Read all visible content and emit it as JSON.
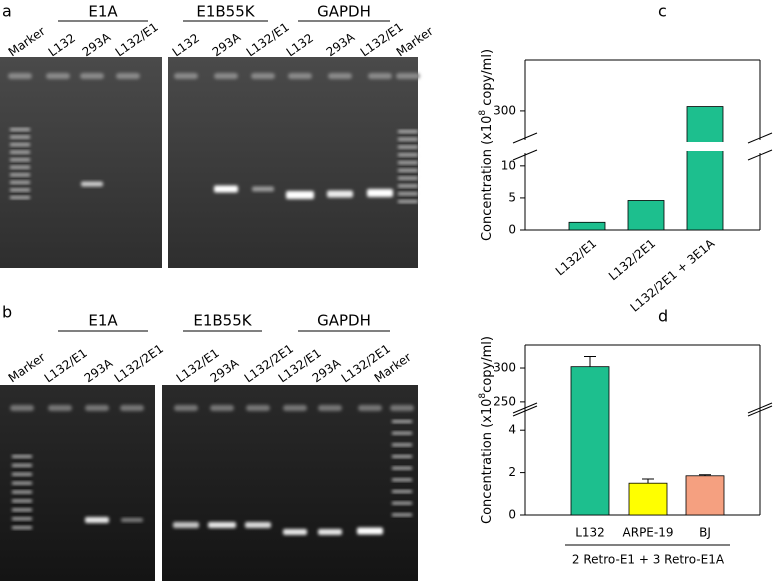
{
  "gel_a": {
    "label": "a",
    "groups": [
      "E1A",
      "E1B55K",
      "GAPDH"
    ],
    "lanes": [
      "Marker",
      "L132",
      "293A",
      "L132/E1",
      "L132",
      "293A",
      "L132/E1",
      "L132",
      "293A",
      "L132/E1",
      "Marker"
    ]
  },
  "gel_b": {
    "label": "b",
    "groups": [
      "E1A",
      "E1B55K",
      "GAPDH"
    ],
    "lanes": [
      "Marker",
      "L132/E1",
      "293A",
      "L132/2E1",
      "L132/E1",
      "293A",
      "L132/2E1",
      "L132/E1",
      "293A",
      "L132/2E1",
      "Marker"
    ]
  },
  "chart_data": [
    {
      "type": "bar",
      "label": "c",
      "ylabel": [
        "Concentration (x10",
        "8",
        " copy/ml)"
      ],
      "categories": [
        "L132/E1",
        "L132/2E1",
        "L132/2E1 + 3E1A"
      ],
      "values": [
        1.2,
        4.6,
        303
      ],
      "color": "#1dbf8e",
      "ylim_segments": [
        [
          0,
          12
        ],
        [
          280,
          335
        ]
      ],
      "yticks": [
        0,
        5,
        10,
        300
      ]
    },
    {
      "type": "bar",
      "label": "d",
      "ylabel": [
        "Concentration (x10",
        "8",
        "copy/ml)"
      ],
      "categories": [
        "L132",
        "ARPE-19",
        "BJ"
      ],
      "values": [
        302,
        1.5,
        1.85
      ],
      "errors": [
        15,
        0.2,
        0.05
      ],
      "colors": [
        "#1dbf8e",
        "#ffff00",
        "#f5a080"
      ],
      "xlabel": "2 Retro-E1 + 3 Retro-E1A",
      "ylim_segments": [
        [
          0,
          5
        ],
        [
          238,
          334
        ]
      ],
      "yticks": [
        0,
        2,
        4,
        250,
        300
      ]
    }
  ]
}
